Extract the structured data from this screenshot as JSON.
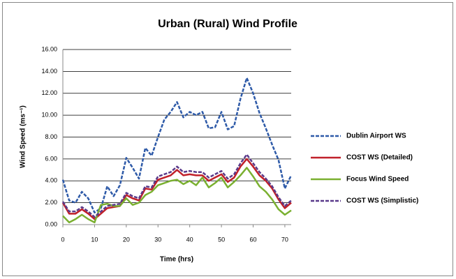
{
  "chart_data": {
    "type": "line",
    "title": "Urban (Rural) Wind Profile",
    "x_label": "Time (hrs)",
    "y_label": "Wind Speed (ms⁻¹)",
    "x": [
      0,
      2,
      4,
      6,
      8,
      10,
      12,
      14,
      16,
      18,
      20,
      22,
      24,
      26,
      28,
      30,
      32,
      34,
      36,
      38,
      40,
      42,
      44,
      46,
      48,
      50,
      52,
      54,
      56,
      58,
      60,
      62,
      64,
      66,
      68,
      70,
      72
    ],
    "series": [
      {
        "name": "Dublin Airport WS",
        "color": "#2e5aa8",
        "dashed": true,
        "values": [
          4.1,
          2.2,
          2.0,
          3.0,
          2.4,
          1.1,
          1.5,
          3.5,
          2.6,
          3.6,
          6.1,
          5.2,
          4.2,
          7.0,
          6.3,
          8.0,
          9.6,
          10.3,
          11.2,
          9.8,
          10.3,
          10.0,
          10.3,
          8.8,
          8.9,
          10.3,
          8.7,
          9.0,
          11.5,
          13.4,
          12.0,
          10.2,
          8.8,
          7.3,
          5.9,
          3.3,
          4.5
        ]
      },
      {
        "name": "COST WS (Detailed)",
        "color": "#c0202a",
        "dashed": false,
        "values": [
          2.0,
          1.0,
          1.0,
          1.4,
          1.0,
          0.5,
          1.0,
          1.5,
          1.6,
          1.7,
          2.7,
          2.4,
          2.2,
          3.3,
          3.2,
          4.1,
          4.3,
          4.5,
          5.0,
          4.5,
          4.6,
          4.5,
          4.5,
          4.0,
          4.3,
          4.6,
          3.9,
          4.3,
          5.3,
          6.0,
          5.3,
          4.5,
          4.0,
          3.3,
          2.3,
          1.5,
          2.0
        ]
      },
      {
        "name": "Focus Wind Speed",
        "color": "#7ab030",
        "dashed": false,
        "values": [
          0.8,
          0.2,
          0.5,
          0.9,
          0.5,
          0.2,
          1.8,
          1.9,
          1.7,
          1.7,
          2.4,
          1.8,
          2.0,
          2.7,
          3.0,
          3.6,
          3.8,
          4.0,
          4.1,
          3.7,
          4.0,
          3.6,
          4.3,
          3.4,
          3.8,
          4.3,
          3.4,
          3.9,
          4.5,
          5.2,
          4.4,
          3.5,
          3.0,
          2.3,
          1.4,
          0.9,
          1.3
        ]
      },
      {
        "name": "COST WS (Simplistic)",
        "color": "#5a3a8a",
        "dashed": true,
        "values": [
          2.1,
          1.2,
          1.2,
          1.6,
          1.2,
          0.7,
          1.2,
          1.7,
          1.8,
          1.9,
          2.9,
          2.6,
          2.4,
          3.5,
          3.4,
          4.4,
          4.6,
          4.8,
          5.3,
          4.8,
          4.9,
          4.8,
          4.8,
          4.3,
          4.6,
          4.9,
          4.2,
          4.6,
          5.6,
          6.4,
          5.6,
          4.8,
          4.2,
          3.5,
          2.5,
          1.7,
          2.2
        ]
      }
    ],
    "xlim": [
      0,
      72
    ],
    "xticks": [
      0,
      10,
      20,
      30,
      40,
      50,
      60,
      70
    ],
    "ylim": [
      0,
      16
    ],
    "yticks": [
      {
        "value": 0,
        "label": "0.00"
      },
      {
        "value": 2,
        "label": "2.00"
      },
      {
        "value": 4,
        "label": "4.00"
      },
      {
        "value": 6,
        "label": "6.00"
      },
      {
        "value": 8,
        "label": "8.00"
      },
      {
        "value": 10,
        "label": "10.00"
      },
      {
        "value": 12,
        "label": "12.00"
      },
      {
        "value": 14,
        "label": "14.00"
      },
      {
        "value": 16,
        "label": "16.00"
      }
    ],
    "grid": true,
    "legend": "right"
  }
}
